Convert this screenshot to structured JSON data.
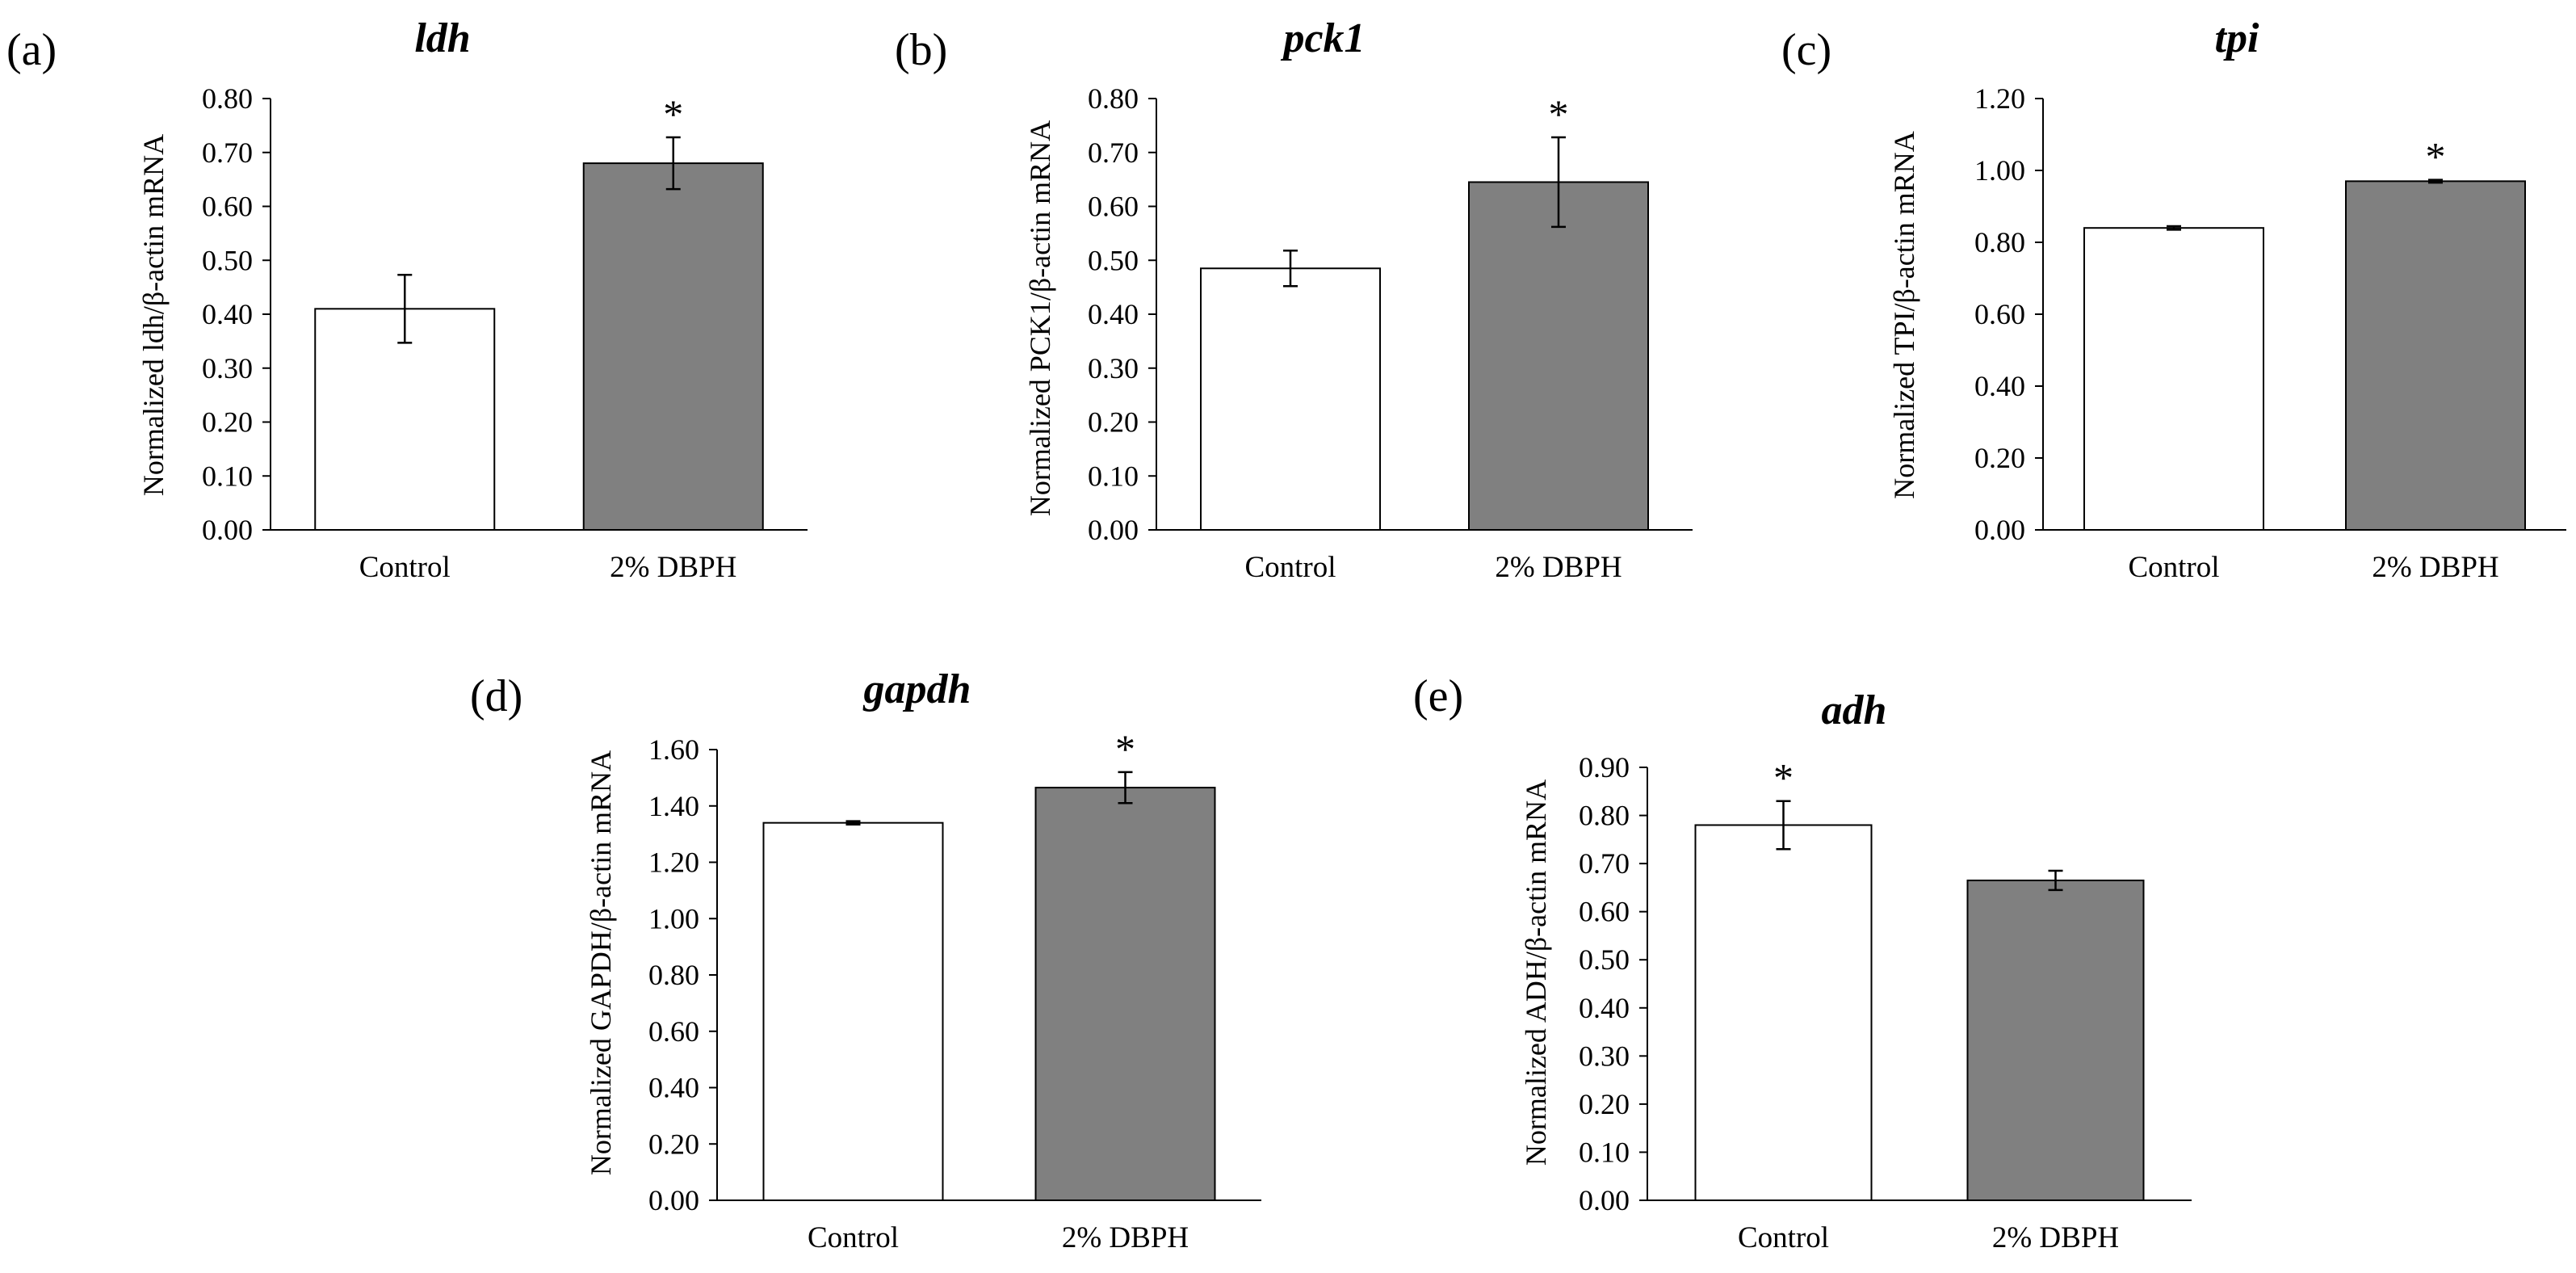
{
  "figure": {
    "background": "#ffffff"
  },
  "chart_data": [
    {
      "type": "bar",
      "panel_label": "(a)",
      "title": "ldh",
      "ylabel": "Normalized ldh/β-actin mRNA",
      "xlabel": "",
      "categories": [
        "Control",
        "2% DBPH"
      ],
      "values": [
        0.41,
        0.68
      ],
      "errors": [
        0.063,
        0.048
      ],
      "bar_colors": [
        "#ffffff",
        "#808080"
      ],
      "significance": [
        "",
        "*"
      ],
      "ylim": [
        0,
        0.8
      ],
      "yticks": [
        "0.00",
        "0.10",
        "0.20",
        "0.30",
        "0.40",
        "0.50",
        "0.60",
        "0.70",
        "0.80"
      ],
      "grid": false
    },
    {
      "type": "bar",
      "panel_label": "(b)",
      "title": "pck1",
      "ylabel": "Normalized PCK1/β-actin mRNA",
      "xlabel": "",
      "categories": [
        "Control",
        "2% DBPH"
      ],
      "values": [
        0.485,
        0.645
      ],
      "errors": [
        0.033,
        0.083
      ],
      "bar_colors": [
        "#ffffff",
        "#808080"
      ],
      "significance": [
        "",
        "*"
      ],
      "ylim": [
        0,
        0.8
      ],
      "yticks": [
        "0.00",
        "0.10",
        "0.20",
        "0.30",
        "0.40",
        "0.50",
        "0.60",
        "0.70",
        "0.80"
      ],
      "grid": false
    },
    {
      "type": "bar",
      "panel_label": "(c)",
      "title": "tpi",
      "ylabel": "Normalized TPI/β-actin mRNA",
      "xlabel": "",
      "categories": [
        "Control",
        "2% DBPH"
      ],
      "values": [
        0.84,
        0.97
      ],
      "errors": [
        0.005,
        0.004
      ],
      "bar_colors": [
        "#ffffff",
        "#808080"
      ],
      "significance": [
        "",
        "*"
      ],
      "ylim": [
        0,
        1.2
      ],
      "yticks": [
        "0.00",
        "0.20",
        "0.40",
        "0.60",
        "0.80",
        "1.00",
        "1.20"
      ],
      "grid": false
    },
    {
      "type": "bar",
      "panel_label": "(d)",
      "title": "gapdh",
      "ylabel": "Normalized GAPDH/β-actin mRNA",
      "xlabel": "",
      "categories": [
        "Control",
        "2% DBPH"
      ],
      "values": [
        1.34,
        1.465
      ],
      "errors": [
        0.006,
        0.055
      ],
      "bar_colors": [
        "#ffffff",
        "#808080"
      ],
      "significance": [
        "",
        "*"
      ],
      "ylim": [
        0,
        1.6
      ],
      "yticks": [
        "0.00",
        "0.20",
        "0.40",
        "0.60",
        "0.80",
        "1.00",
        "1.20",
        "1.40",
        "1.60"
      ],
      "grid": false
    },
    {
      "type": "bar",
      "panel_label": "(e)",
      "title": "adh",
      "ylabel": "Normalized ADH/β-actin mRNA",
      "xlabel": "",
      "categories": [
        "Control",
        "2% DBPH"
      ],
      "values": [
        0.78,
        0.665
      ],
      "errors": [
        0.05,
        0.02
      ],
      "bar_colors": [
        "#ffffff",
        "#808080"
      ],
      "significance": [
        "*",
        ""
      ],
      "ylim": [
        0,
        0.9
      ],
      "yticks": [
        "0.00",
        "0.10",
        "0.20",
        "0.30",
        "0.40",
        "0.50",
        "0.60",
        "0.70",
        "0.80",
        "0.90"
      ],
      "grid": false
    }
  ]
}
